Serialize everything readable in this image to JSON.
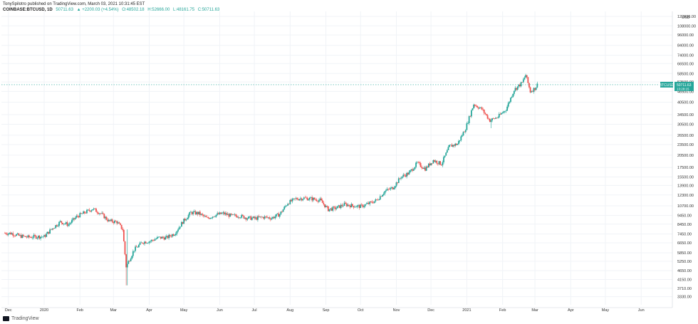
{
  "header": {
    "publisher": "TonySpilotro published on TradingView.com, March 03, 2021 10:31:45 EST",
    "symbol": "COINBASE:BTCUSD, 1D",
    "last": "50711.63",
    "change": "▲ +2200.03 (+4.54%)",
    "o": "O:48502.18",
    "h": "H:52666.00",
    "l": "L:48161.75",
    "c": "C:50711.63"
  },
  "footer": {
    "brand": "TradingView"
  },
  "chart_data": {
    "type": "candlestick",
    "symbol": "BTCUSD",
    "currency": "USD",
    "yscale": "log",
    "ylim": [
      3000,
      130000
    ],
    "y_ticks": [
      "3330.00",
      "3710.00",
      "4150.00",
      "4650.00",
      "5250.00",
      "5850.00",
      "6650.00",
      "7450.00",
      "8450.00",
      "9450.00",
      "10700.00",
      "12300.00",
      "13900.00",
      "15500.00",
      "17500.00",
      "20500.00",
      "23500.00",
      "26500.00",
      "30500.00",
      "34500.00",
      "40500.00",
      "46500.00",
      "52500.00",
      "58500.00",
      "66500.00",
      "74000.00",
      "84000.00",
      "96000.00",
      "108000.00",
      "122000.00"
    ],
    "y_tick_values": [
      3330,
      3710,
      4150,
      4650,
      5250,
      5850,
      6650,
      7450,
      8450,
      9450,
      10700,
      12300,
      13900,
      15500,
      17500,
      20500,
      23500,
      26500,
      30500,
      34500,
      40500,
      46500,
      52500,
      58500,
      66500,
      74000,
      84000,
      96000,
      108000,
      122000
    ],
    "x_ticks": [
      "Dec",
      "2020",
      "Feb",
      "Mar",
      "Apr",
      "May",
      "Jun",
      "Jul",
      "Aug",
      "Sep",
      "Oct",
      "Nov",
      "Dec",
      "2021",
      "Feb",
      "Mar",
      "Apr",
      "May",
      "Jun"
    ],
    "last_price": {
      "label": "BTCUSD",
      "value": "50711.63",
      "time": "13:28:15"
    },
    "weekly_closes": [
      {
        "t": "2019-11-27",
        "c": 7550
      },
      {
        "t": "2019-12-04",
        "c": 7500
      },
      {
        "t": "2019-12-11",
        "c": 7250
      },
      {
        "t": "2019-12-18",
        "c": 7150
      },
      {
        "t": "2019-12-25",
        "c": 7200
      },
      {
        "t": "2020-01-01",
        "c": 7200
      },
      {
        "t": "2020-01-08",
        "c": 8000
      },
      {
        "t": "2020-01-15",
        "c": 8700
      },
      {
        "t": "2020-01-22",
        "c": 8400
      },
      {
        "t": "2020-01-29",
        "c": 9300
      },
      {
        "t": "2020-02-05",
        "c": 9800
      },
      {
        "t": "2020-02-12",
        "c": 10300
      },
      {
        "t": "2020-02-19",
        "c": 9700
      },
      {
        "t": "2020-02-26",
        "c": 8800
      },
      {
        "t": "2020-03-04",
        "c": 8700
      },
      {
        "t": "2020-03-09",
        "c": 7900
      },
      {
        "t": "2020-03-12",
        "c": 4900
      },
      {
        "t": "2020-03-19",
        "c": 6100
      },
      {
        "t": "2020-03-26",
        "c": 6700
      },
      {
        "t": "2020-04-02",
        "c": 6800
      },
      {
        "t": "2020-04-09",
        "c": 7100
      },
      {
        "t": "2020-04-16",
        "c": 7100
      },
      {
        "t": "2020-04-23",
        "c": 7500
      },
      {
        "t": "2020-04-30",
        "c": 8700
      },
      {
        "t": "2020-05-07",
        "c": 9800
      },
      {
        "t": "2020-05-14",
        "c": 9700
      },
      {
        "t": "2020-05-21",
        "c": 9100
      },
      {
        "t": "2020-05-28",
        "c": 9500
      },
      {
        "t": "2020-06-04",
        "c": 9700
      },
      {
        "t": "2020-06-11",
        "c": 9400
      },
      {
        "t": "2020-06-18",
        "c": 9400
      },
      {
        "t": "2020-06-25",
        "c": 9150
      },
      {
        "t": "2020-07-02",
        "c": 9100
      },
      {
        "t": "2020-07-09",
        "c": 9250
      },
      {
        "t": "2020-07-16",
        "c": 9150
      },
      {
        "t": "2020-07-23",
        "c": 9600
      },
      {
        "t": "2020-07-30",
        "c": 11100
      },
      {
        "t": "2020-08-06",
        "c": 11700
      },
      {
        "t": "2020-08-13",
        "c": 11800
      },
      {
        "t": "2020-08-20",
        "c": 11700
      },
      {
        "t": "2020-08-27",
        "c": 11500
      },
      {
        "t": "2020-09-03",
        "c": 10200
      },
      {
        "t": "2020-09-10",
        "c": 10400
      },
      {
        "t": "2020-09-17",
        "c": 10900
      },
      {
        "t": "2020-09-24",
        "c": 10700
      },
      {
        "t": "2020-10-01",
        "c": 10600
      },
      {
        "t": "2020-10-08",
        "c": 11000
      },
      {
        "t": "2020-10-15",
        "c": 11500
      },
      {
        "t": "2020-10-22",
        "c": 12900
      },
      {
        "t": "2020-10-29",
        "c": 13500
      },
      {
        "t": "2020-11-05",
        "c": 15500
      },
      {
        "t": "2020-11-12",
        "c": 16300
      },
      {
        "t": "2020-11-19",
        "c": 18500
      },
      {
        "t": "2020-11-26",
        "c": 17200
      },
      {
        "t": "2020-12-03",
        "c": 19200
      },
      {
        "t": "2020-12-10",
        "c": 18300
      },
      {
        "t": "2020-12-17",
        "c": 23000
      },
      {
        "t": "2020-12-24",
        "c": 23700
      },
      {
        "t": "2020-12-31",
        "c": 29000
      },
      {
        "t": "2021-01-07",
        "c": 39500
      },
      {
        "t": "2021-01-14",
        "c": 37000
      },
      {
        "t": "2021-01-21",
        "c": 32000
      },
      {
        "t": "2021-01-28",
        "c": 33500
      },
      {
        "t": "2021-02-04",
        "c": 37000
      },
      {
        "t": "2021-02-11",
        "c": 47500
      },
      {
        "t": "2021-02-18",
        "c": 52000
      },
      {
        "t": "2021-02-21",
        "c": 57500
      },
      {
        "t": "2021-02-25",
        "c": 46500
      },
      {
        "t": "2021-03-01",
        "c": 48400
      },
      {
        "t": "2021-03-03",
        "c": 50711
      }
    ],
    "wick_extremes": [
      {
        "t": "2020-03-12",
        "low": 3850
      },
      {
        "t": "2021-02-21",
        "high": 58300
      },
      {
        "t": "2021-01-22",
        "low": 29000
      }
    ]
  }
}
